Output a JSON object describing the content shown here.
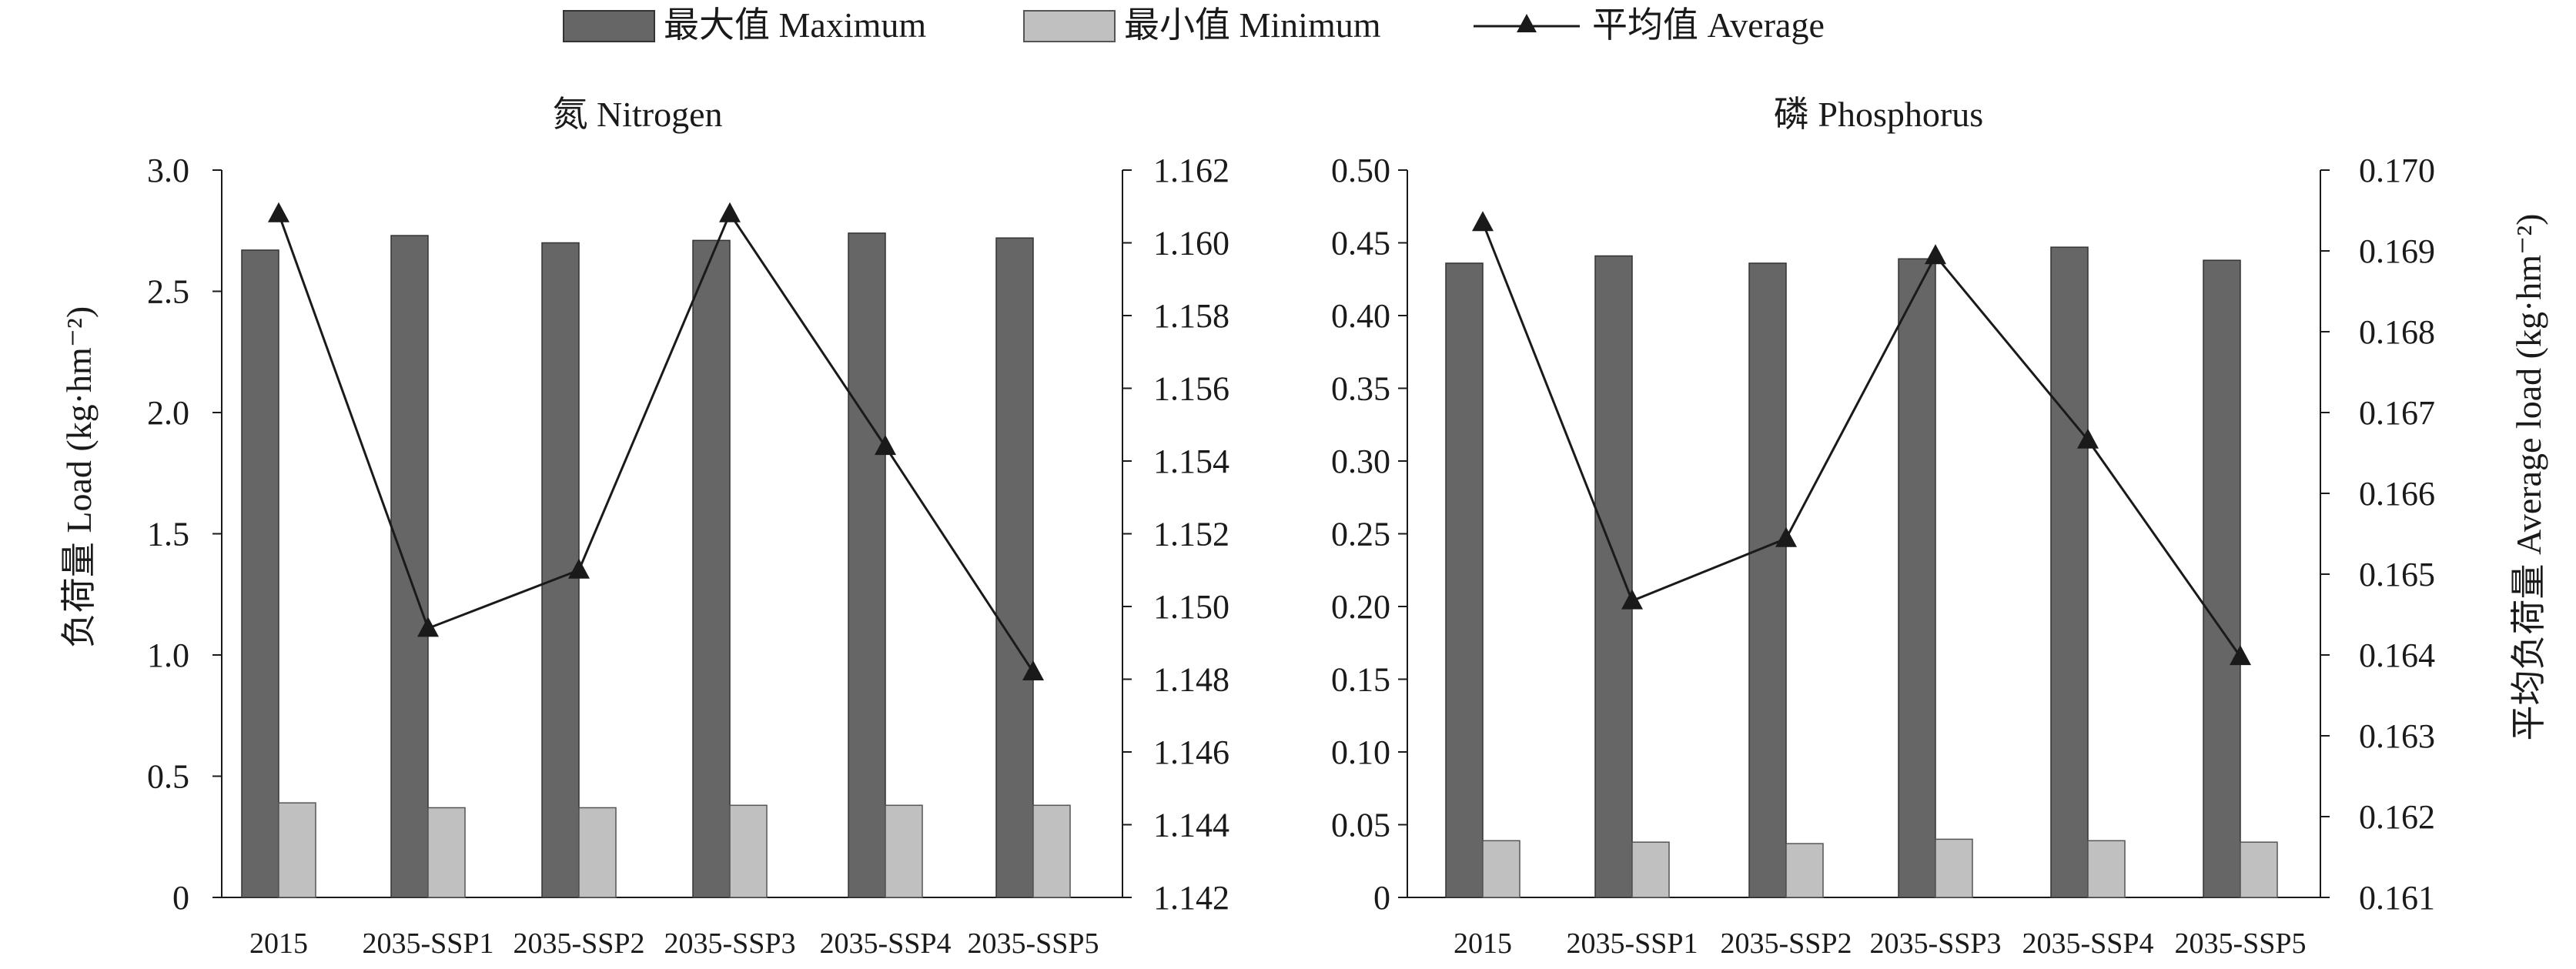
{
  "legend": {
    "maximum_label": "最大值 Maximum",
    "minimum_label": "最小值 Minimum",
    "average_label": "平均值 Average"
  },
  "colors": {
    "maximum": "#666666",
    "minimum": "#c0c0c0",
    "line": "#1a1a1a",
    "axis": "#1a1a1a"
  },
  "axes": {
    "left_ylabel": "负荷量 Load (kg·hm⁻²)",
    "right_ylabel": "平均负荷量 Average load (kg·hm⁻²)"
  },
  "chart_data": [
    {
      "type": "bar",
      "title": "氮 Nitrogen",
      "categories": [
        "2015",
        "2035-SSP1",
        "2035-SSP2",
        "2035-SSP3",
        "2035-SSP4",
        "2035-SSP5"
      ],
      "series": [
        {
          "name": "最大值 Maximum",
          "axis": "left",
          "values": [
            2.67,
            2.73,
            2.7,
            2.71,
            2.74,
            2.72
          ]
        },
        {
          "name": "最小值 Minimum",
          "axis": "left",
          "values": [
            0.39,
            0.37,
            0.37,
            0.38,
            0.38,
            0.38
          ]
        },
        {
          "name": "平均值 Average",
          "axis": "right",
          "type": "line",
          "values": [
            1.1608,
            1.1494,
            1.151,
            1.1608,
            1.1544,
            1.1482
          ]
        }
      ],
      "ylim_left": [
        0,
        3.0
      ],
      "yticks_left": [
        "0",
        "0.5",
        "1.0",
        "1.5",
        "2.0",
        "2.5",
        "3.0"
      ],
      "ylim_right": [
        1.142,
        1.162
      ],
      "yticks_right": [
        "1.142",
        "1.144",
        "1.146",
        "1.148",
        "1.150",
        "1.152",
        "1.154",
        "1.156",
        "1.158",
        "1.160",
        "1.162"
      ],
      "legend_position": "top-center",
      "grid": false
    },
    {
      "type": "bar",
      "title": "磷 Phosphorus",
      "categories": [
        "2015",
        "2035-SSP1",
        "2035-SSP2",
        "2035-SSP3",
        "2035-SSP4",
        "2035-SSP5"
      ],
      "series": [
        {
          "name": "最大值 Maximum",
          "axis": "left",
          "values": [
            0.436,
            0.441,
            0.436,
            0.439,
            0.447,
            0.438
          ]
        },
        {
          "name": "最小值 Minimum",
          "axis": "left",
          "values": [
            0.039,
            0.038,
            0.037,
            0.04,
            0.039,
            0.038
          ]
        },
        {
          "name": "平均值 Average",
          "axis": "right",
          "type": "line",
          "values": [
            0.16935,
            0.16467,
            0.16544,
            0.16894,
            0.16666,
            0.16398
          ]
        }
      ],
      "ylim_left": [
        0,
        0.5
      ],
      "yticks_left": [
        "0",
        "0.05",
        "0.10",
        "0.15",
        "0.20",
        "0.25",
        "0.30",
        "0.35",
        "0.40",
        "0.45",
        "0.50"
      ],
      "ylim_right": [
        0.161,
        0.17
      ],
      "yticks_right": [
        "0.161",
        "0.162",
        "0.163",
        "0.164",
        "0.165",
        "0.166",
        "0.167",
        "0.168",
        "0.169",
        "0.170"
      ],
      "legend_position": "top-center",
      "grid": false
    }
  ]
}
